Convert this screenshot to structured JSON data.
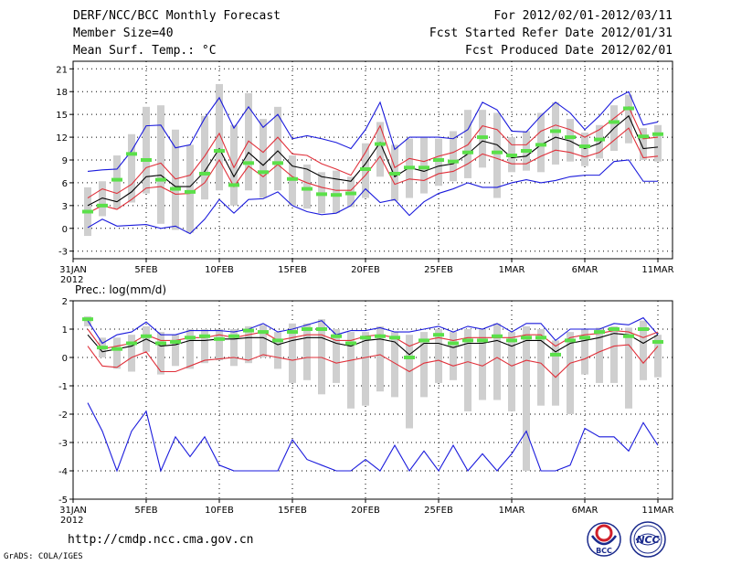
{
  "header": {
    "title": "DERF/NCC/BCC Monthly Forecast",
    "member_size": "Member Size=40",
    "variable": "Mean Surf. Temp.: °C",
    "period": "For 2012/02/01-2012/03/11",
    "start_refer": "Fcst Started Refer Date 2012/01/31",
    "produced": "Fcst Produced Date 2012/02/01"
  },
  "footer": {
    "url": "http://cmdp.ncc.cma.gov.cn",
    "credit": "GrADS: COLA/IGES",
    "logo_bcc_text": "BCC",
    "logo_ncc_text": "NCC"
  },
  "colors": {
    "bar": "#cfcfcf",
    "median": "#5be04a",
    "mean": "#000000",
    "inner": "#e0303a",
    "outer": "#1a1adc"
  },
  "chart_data": [
    {
      "type": "line",
      "title": "Mean Surf. Temp.: °C",
      "ylabel": "",
      "x_start": "2012-01-31",
      "x_ticks": [
        "31JAN",
        "5FEB",
        "10FEB",
        "15FEB",
        "20FEB",
        "25FEB",
        "1MAR",
        "6MAR",
        "11MAR"
      ],
      "x_tick_days": [
        0,
        5,
        10,
        15,
        20,
        25,
        30,
        35,
        40
      ],
      "x_year_label": "2012",
      "ylim": [
        -4,
        22
      ],
      "y_ticks": [
        -3,
        0,
        3,
        6,
        9,
        12,
        15,
        18,
        21
      ],
      "x": [
        1,
        2,
        3,
        4,
        5,
        6,
        7,
        8,
        9,
        10,
        11,
        12,
        13,
        14,
        15,
        16,
        17,
        18,
        19,
        20,
        21,
        22,
        23,
        24,
        25,
        26,
        27,
        28,
        29,
        30,
        31,
        32,
        33,
        34,
        35,
        36,
        37,
        38,
        39,
        40
      ],
      "series": [
        {
          "name": "max",
          "role": "outer",
          "values": [
            7.5,
            7.7,
            7.8,
            10.2,
            13.5,
            13.6,
            10.6,
            11.0,
            14.5,
            17.2,
            13.2,
            16.0,
            13.3,
            15.0,
            11.8,
            12.2,
            11.8,
            11.3,
            10.5,
            13.0,
            16.6,
            10.4,
            12.0,
            12.0,
            12.0,
            11.8,
            13.0,
            16.6,
            15.6,
            12.8,
            12.7,
            14.8,
            16.6,
            15.2,
            13.0,
            14.8,
            17.0,
            18.0,
            13.6,
            14.0
          ]
        },
        {
          "name": "p75",
          "role": "inner",
          "values": [
            4.0,
            5.2,
            4.6,
            5.8,
            8.0,
            8.6,
            6.5,
            7.0,
            9.5,
            12.5,
            8.0,
            11.5,
            10.0,
            12.0,
            9.8,
            9.6,
            8.5,
            7.8,
            7.0,
            10.0,
            13.5,
            8.0,
            9.2,
            8.8,
            9.5,
            10.0,
            11.0,
            13.5,
            13.0,
            11.0,
            11.0,
            12.8,
            13.6,
            13.0,
            12.0,
            13.0,
            14.5,
            16.0,
            11.8,
            12.0
          ]
        },
        {
          "name": "mean",
          "role": "mean",
          "values": [
            3.0,
            4.0,
            3.5,
            4.8,
            6.8,
            7.0,
            5.5,
            5.5,
            7.5,
            10.5,
            6.8,
            10.0,
            8.3,
            10.2,
            8.2,
            7.8,
            6.8,
            6.5,
            6.2,
            8.5,
            11.3,
            6.8,
            8.0,
            7.5,
            8.2,
            8.5,
            9.8,
            11.5,
            11.0,
            9.3,
            9.5,
            11.0,
            12.0,
            11.5,
            10.5,
            11.2,
            13.2,
            14.8,
            10.5,
            10.7
          ]
        },
        {
          "name": "p25",
          "role": "inner",
          "values": [
            2.0,
            3.0,
            2.5,
            3.8,
            5.3,
            5.5,
            4.5,
            4.6,
            6.0,
            9.0,
            5.5,
            8.2,
            6.8,
            8.4,
            6.8,
            6.0,
            5.4,
            5.0,
            5.0,
            7.0,
            9.5,
            5.8,
            6.5,
            6.3,
            7.2,
            7.5,
            8.5,
            9.8,
            9.2,
            8.5,
            8.5,
            9.5,
            10.3,
            10.0,
            9.4,
            10.0,
            11.6,
            13.2,
            9.3,
            9.5
          ]
        },
        {
          "name": "min",
          "role": "outer",
          "values": [
            0.1,
            1.2,
            0.3,
            0.4,
            0.5,
            0.0,
            0.3,
            -0.7,
            1.2,
            3.8,
            2.0,
            3.8,
            3.9,
            4.8,
            3.0,
            2.2,
            1.8,
            2.0,
            3.0,
            5.2,
            3.4,
            3.8,
            1.7,
            3.5,
            4.6,
            5.2,
            6.0,
            5.4,
            5.4,
            6.0,
            6.4,
            6.0,
            6.3,
            6.8,
            7.0,
            7.0,
            8.8,
            9.0,
            6.2,
            6.2
          ]
        },
        {
          "name": "median",
          "role": "median",
          "values": [
            2.2,
            3.0,
            6.4,
            9.8,
            9.0,
            6.4,
            5.2,
            4.8,
            7.2,
            10.2,
            5.7,
            8.6,
            7.4,
            8.6,
            6.5,
            5.2,
            4.5,
            4.4,
            4.6,
            7.8,
            11.1,
            7.2,
            8.0,
            8.0,
            9.0,
            8.8,
            10.0,
            12.0,
            10.0,
            9.6,
            10.2,
            11.0,
            12.8,
            12.0,
            10.8,
            11.7,
            14.0,
            15.8,
            12.1,
            12.4
          ]
        }
      ],
      "box_low": [
        -1.0,
        1.6,
        2.6,
        3.4,
        4.6,
        0.6,
        -0.2,
        -0.6,
        3.8,
        5.0,
        3.0,
        5.0,
        4.0,
        5.0,
        3.0,
        2.6,
        2.0,
        2.0,
        2.8,
        4.0,
        6.8,
        3.6,
        4.0,
        4.6,
        5.6,
        6.2,
        6.6,
        8.0,
        4.0,
        7.4,
        7.6,
        7.4,
        8.4,
        8.8,
        8.2,
        9.2,
        10.2,
        11.2,
        9.0,
        8.8
      ],
      "box_high": [
        5.4,
        6.2,
        9.6,
        12.4,
        16.0,
        16.2,
        13.0,
        11.0,
        14.8,
        19.0,
        13.6,
        17.8,
        14.4,
        16.0,
        9.6,
        8.4,
        7.4,
        7.6,
        6.8,
        11.2,
        14.0,
        11.0,
        11.8,
        12.0,
        11.8,
        12.8,
        15.6,
        15.6,
        15.2,
        12.0,
        12.8,
        15.2,
        16.6,
        14.4,
        12.6,
        13.6,
        16.2,
        17.6,
        13.2,
        13.6
      ]
    },
    {
      "type": "line",
      "title": "Prec.: log(mm/d)",
      "ylabel": "",
      "x_start": "2012-01-31",
      "x_ticks": [
        "31JAN",
        "5FEB",
        "10FEB",
        "15FEB",
        "20FEB",
        "25FEB",
        "1MAR",
        "6MAR",
        "11MAR"
      ],
      "x_tick_days": [
        0,
        5,
        10,
        15,
        20,
        25,
        30,
        35,
        40
      ],
      "x_year_label": "2012",
      "ylim": [
        -5,
        2
      ],
      "y_ticks": [
        -5,
        -4,
        -3,
        -2,
        -1,
        0,
        1,
        2
      ],
      "x": [
        1,
        2,
        3,
        4,
        5,
        6,
        7,
        8,
        9,
        10,
        11,
        12,
        13,
        14,
        15,
        16,
        17,
        18,
        19,
        20,
        21,
        22,
        23,
        24,
        25,
        26,
        27,
        28,
        29,
        30,
        31,
        32,
        33,
        34,
        35,
        36,
        37,
        38,
        39,
        40
      ],
      "series": [
        {
          "name": "max",
          "role": "outer",
          "values": [
            1.3,
            0.5,
            0.8,
            0.9,
            1.25,
            0.8,
            0.8,
            0.95,
            0.95,
            0.95,
            0.9,
            1.0,
            1.2,
            0.9,
            1.0,
            1.15,
            1.3,
            0.8,
            0.95,
            0.95,
            1.05,
            0.9,
            0.9,
            1.0,
            1.1,
            0.9,
            1.1,
            1.0,
            1.2,
            0.9,
            1.2,
            1.2,
            0.6,
            1.0,
            1.0,
            1.0,
            1.2,
            1.15,
            1.4,
            0.8
          ]
        },
        {
          "name": "p75",
          "role": "inner",
          "values": [
            1.0,
            0.3,
            0.4,
            0.5,
            0.8,
            0.6,
            0.6,
            0.7,
            0.7,
            0.8,
            0.7,
            0.8,
            0.9,
            0.6,
            0.7,
            0.8,
            0.8,
            0.6,
            0.6,
            0.75,
            0.8,
            0.7,
            0.4,
            0.6,
            0.7,
            0.6,
            0.7,
            0.7,
            0.7,
            0.7,
            0.8,
            0.8,
            0.4,
            0.7,
            0.8,
            0.85,
            0.95,
            0.9,
            0.7,
            0.9
          ]
        },
        {
          "name": "mean",
          "role": "mean",
          "values": [
            0.8,
            0.2,
            0.3,
            0.4,
            0.65,
            0.4,
            0.45,
            0.6,
            0.6,
            0.65,
            0.65,
            0.7,
            0.7,
            0.45,
            0.6,
            0.7,
            0.7,
            0.5,
            0.4,
            0.6,
            0.65,
            0.55,
            0.1,
            0.5,
            0.5,
            0.35,
            0.5,
            0.5,
            0.6,
            0.4,
            0.6,
            0.6,
            0.2,
            0.5,
            0.6,
            0.7,
            0.85,
            0.8,
            0.5,
            0.8
          ]
        },
        {
          "name": "p25",
          "role": "inner",
          "values": [
            0.4,
            -0.3,
            -0.35,
            0.0,
            0.2,
            -0.5,
            -0.5,
            -0.3,
            -0.1,
            -0.05,
            0.0,
            -0.1,
            0.1,
            0.0,
            -0.1,
            0.0,
            0.0,
            -0.2,
            -0.1,
            0.0,
            0.1,
            -0.2,
            -0.5,
            -0.2,
            -0.1,
            -0.3,
            -0.15,
            -0.3,
            0.0,
            -0.3,
            -0.1,
            -0.2,
            -0.7,
            -0.2,
            -0.05,
            0.2,
            0.4,
            0.45,
            -0.2,
            0.4
          ]
        },
        {
          "name": "min",
          "role": "outer",
          "values": [
            -1.6,
            -2.6,
            -4.0,
            -2.6,
            -1.9,
            -4.0,
            -2.8,
            -3.5,
            -2.8,
            -3.8,
            -4.0,
            -4.0,
            -4.0,
            -4.0,
            -2.9,
            -3.6,
            -3.8,
            -4.0,
            -4.0,
            -3.6,
            -4.0,
            -3.1,
            -4.0,
            -3.3,
            -4.0,
            -3.1,
            -4.0,
            -3.4,
            -4.0,
            -3.4,
            -2.6,
            -4.0,
            -4.0,
            -3.8,
            -2.5,
            -2.8,
            -2.8,
            -3.3,
            -2.3,
            -3.1
          ]
        },
        {
          "name": "median",
          "role": "median",
          "values": [
            1.35,
            0.35,
            0.3,
            0.5,
            0.75,
            0.5,
            0.55,
            0.7,
            0.75,
            0.65,
            0.75,
            0.95,
            0.9,
            0.6,
            0.9,
            1.0,
            1.0,
            0.75,
            0.5,
            0.7,
            0.75,
            0.7,
            0.0,
            0.6,
            0.8,
            0.5,
            0.6,
            0.6,
            0.75,
            0.6,
            0.7,
            0.7,
            0.1,
            0.6,
            0.7,
            0.9,
            1.0,
            0.75,
            1.0,
            0.55
          ]
        }
      ],
      "box_low": [
        1.1,
        0.0,
        -0.4,
        -0.5,
        0.2,
        -0.6,
        -0.3,
        -0.4,
        -0.2,
        -0.1,
        -0.3,
        -0.2,
        0.0,
        -0.4,
        -0.9,
        -0.8,
        -1.3,
        -0.9,
        -1.8,
        -1.7,
        -1.2,
        -1.4,
        -2.5,
        -1.4,
        -0.9,
        -0.8,
        -1.9,
        -1.5,
        -1.5,
        -1.9,
        -4.0,
        -1.7,
        -1.7,
        -2.0,
        -0.6,
        -0.9,
        -0.9,
        -1.8,
        -0.8,
        -0.7
      ],
      "box_high": [
        1.45,
        0.7,
        0.7,
        0.8,
        1.1,
        0.9,
        0.8,
        1.0,
        1.0,
        1.0,
        1.0,
        1.1,
        1.15,
        0.9,
        1.2,
        1.2,
        1.35,
        1.0,
        0.9,
        0.9,
        1.1,
        0.9,
        0.8,
        0.9,
        1.0,
        0.9,
        1.0,
        1.0,
        1.2,
        0.9,
        1.1,
        1.0,
        0.6,
        0.9,
        1.0,
        1.05,
        1.1,
        1.05,
        1.3,
        0.8
      ]
    }
  ]
}
